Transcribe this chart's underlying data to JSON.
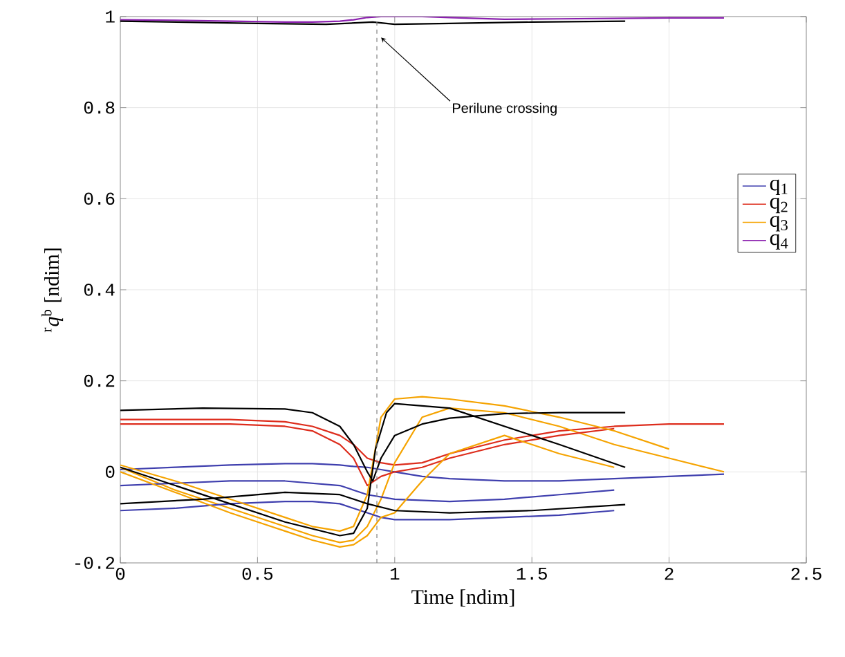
{
  "chart_data": {
    "type": "line",
    "xlabel": "Time [ndim]",
    "ylabel": "$^{r}$*q*$^{b}$ [ndim]",
    "x": [
      0,
      0.2,
      0.4,
      0.6,
      0.7,
      0.8,
      0.85,
      0.9,
      0.95,
      1.0,
      1.1,
      1.2,
      1.4,
      1.6,
      1.8,
      2.0,
      2.2
    ],
    "series": [
      {
        "name": "q$_{1}$",
        "color": "#3f3fae",
        "values": [
          0.005,
          0.01,
          0.015,
          0.018,
          0.018,
          0.015,
          0.012,
          0.01,
          0.005,
          0.0,
          -0.01,
          -0.015,
          -0.02,
          -0.02,
          -0.015,
          -0.01,
          -0.005
        ]
      },
      {
        "name": "q$_{2}$",
        "color": "#dd2c1c",
        "values": [
          0.115,
          0.115,
          0.115,
          0.11,
          0.1,
          0.08,
          0.06,
          0.03,
          0.02,
          0.015,
          0.02,
          0.04,
          0.07,
          0.09,
          0.1,
          0.105,
          0.105
        ]
      },
      {
        "name": "q$_{3}$",
        "color": "#f5a300",
        "values": [
          0.01,
          -0.04,
          -0.08,
          -0.12,
          -0.14,
          -0.155,
          -0.15,
          -0.12,
          -0.06,
          0.02,
          0.12,
          0.14,
          0.13,
          0.1,
          0.06,
          0.03,
          0.0
        ]
      },
      {
        "name": "q$_{4}$",
        "color": "#8a1fae",
        "values": [
          0.993,
          0.992,
          0.99,
          0.988,
          0.988,
          0.99,
          0.993,
          0.998,
          1.0,
          1.0,
          1.0,
          0.998,
          0.994,
          0.995,
          0.996,
          0.997,
          0.997
        ]
      },
      {
        "color": "#3f3fae",
        "x": [
          0,
          0.2,
          0.4,
          0.6,
          0.7,
          0.8,
          0.85,
          0.9,
          0.95,
          1.0,
          1.1,
          1.2,
          1.4,
          1.6,
          1.8
        ],
        "values": [
          -0.085,
          -0.08,
          -0.07,
          -0.065,
          -0.065,
          -0.07,
          -0.08,
          -0.09,
          -0.1,
          -0.105,
          -0.105,
          -0.105,
          -0.1,
          -0.095,
          -0.085
        ]
      },
      {
        "color": "#3f3fae",
        "x": [
          0,
          0.2,
          0.4,
          0.6,
          0.8,
          0.9,
          1.0,
          1.2,
          1.4,
          1.6,
          1.8
        ],
        "values": [
          -0.03,
          -0.025,
          -0.02,
          -0.02,
          -0.03,
          -0.05,
          -0.06,
          -0.065,
          -0.06,
          -0.05,
          -0.04
        ]
      },
      {
        "color": "#dd2c1c",
        "x": [
          0,
          0.2,
          0.4,
          0.6,
          0.7,
          0.8,
          0.85,
          0.9,
          0.95,
          1.0,
          1.1,
          1.2,
          1.4,
          1.6,
          1.8
        ],
        "values": [
          0.105,
          0.105,
          0.105,
          0.1,
          0.09,
          0.06,
          0.03,
          -0.03,
          -0.01,
          0.0,
          0.01,
          0.03,
          0.06,
          0.08,
          0.095
        ]
      },
      {
        "color": "#f5a300",
        "x": [
          0,
          0.2,
          0.4,
          0.6,
          0.7,
          0.8,
          0.85,
          0.9,
          0.95,
          1.0,
          1.1,
          1.2,
          1.4,
          1.6,
          1.8,
          2.0
        ],
        "values": [
          0.015,
          -0.02,
          -0.06,
          -0.1,
          -0.12,
          -0.13,
          -0.12,
          -0.05,
          0.12,
          0.16,
          0.165,
          0.16,
          0.145,
          0.12,
          0.09,
          0.05
        ]
      },
      {
        "color": "#f5a300",
        "x": [
          0,
          0.2,
          0.4,
          0.6,
          0.7,
          0.8,
          0.85,
          0.9,
          0.95,
          1.0,
          1.1,
          1.2,
          1.4,
          1.6,
          1.8
        ],
        "values": [
          0.0,
          -0.045,
          -0.09,
          -0.13,
          -0.15,
          -0.165,
          -0.16,
          -0.14,
          -0.1,
          -0.09,
          -0.02,
          0.04,
          0.08,
          0.04,
          0.01
        ]
      },
      {
        "color": "#000000",
        "x": [
          0,
          0.3,
          0.6,
          0.8,
          0.9,
          1.0,
          1.2,
          1.5,
          1.84
        ],
        "values": [
          -0.07,
          -0.06,
          -0.045,
          -0.05,
          -0.07,
          -0.085,
          -0.09,
          -0.085,
          -0.072
        ]
      },
      {
        "color": "#000000",
        "x": [
          0,
          0.3,
          0.6,
          0.7,
          0.8,
          0.85,
          0.9,
          0.92,
          0.95,
          1.0,
          1.1,
          1.2,
          1.4,
          1.6,
          1.84
        ],
        "values": [
          0.135,
          0.14,
          0.138,
          0.13,
          0.1,
          0.06,
          0.0,
          -0.02,
          0.03,
          0.08,
          0.105,
          0.118,
          0.128,
          0.13,
          0.13
        ]
      },
      {
        "color": "#000000",
        "x": [
          0,
          0.2,
          0.4,
          0.6,
          0.8,
          0.85,
          0.9,
          0.93,
          0.97,
          1.0,
          1.2,
          1.4,
          1.6,
          1.84
        ],
        "values": [
          0.01,
          -0.03,
          -0.07,
          -0.11,
          -0.14,
          -0.135,
          -0.08,
          0.05,
          0.13,
          0.15,
          0.14,
          0.1,
          0.06,
          0.01
        ]
      },
      {
        "color": "#000000",
        "x": [
          0,
          0.5,
          0.75,
          0.92,
          1.0,
          1.2,
          1.5,
          1.84
        ],
        "values": [
          0.99,
          0.985,
          0.983,
          0.988,
          0.983,
          0.985,
          0.988,
          0.99
        ]
      }
    ],
    "xlim": [
      0,
      2.5
    ],
    "ylim": [
      -0.2,
      1
    ],
    "xticks": [
      0,
      0.5,
      1,
      1.5,
      2,
      2.5
    ],
    "yticks": [
      -0.2,
      0,
      0.2,
      0.4,
      0.6,
      0.8,
      1
    ],
    "ref_lines": [
      {
        "axis": "x",
        "value": 0.935,
        "color": "#808080",
        "line_style": "dashed"
      }
    ],
    "annotations": [
      {
        "text": "Perilune crossing",
        "x": 0.94,
        "y": 0.96
      }
    ],
    "grid": true,
    "legend": "right"
  }
}
